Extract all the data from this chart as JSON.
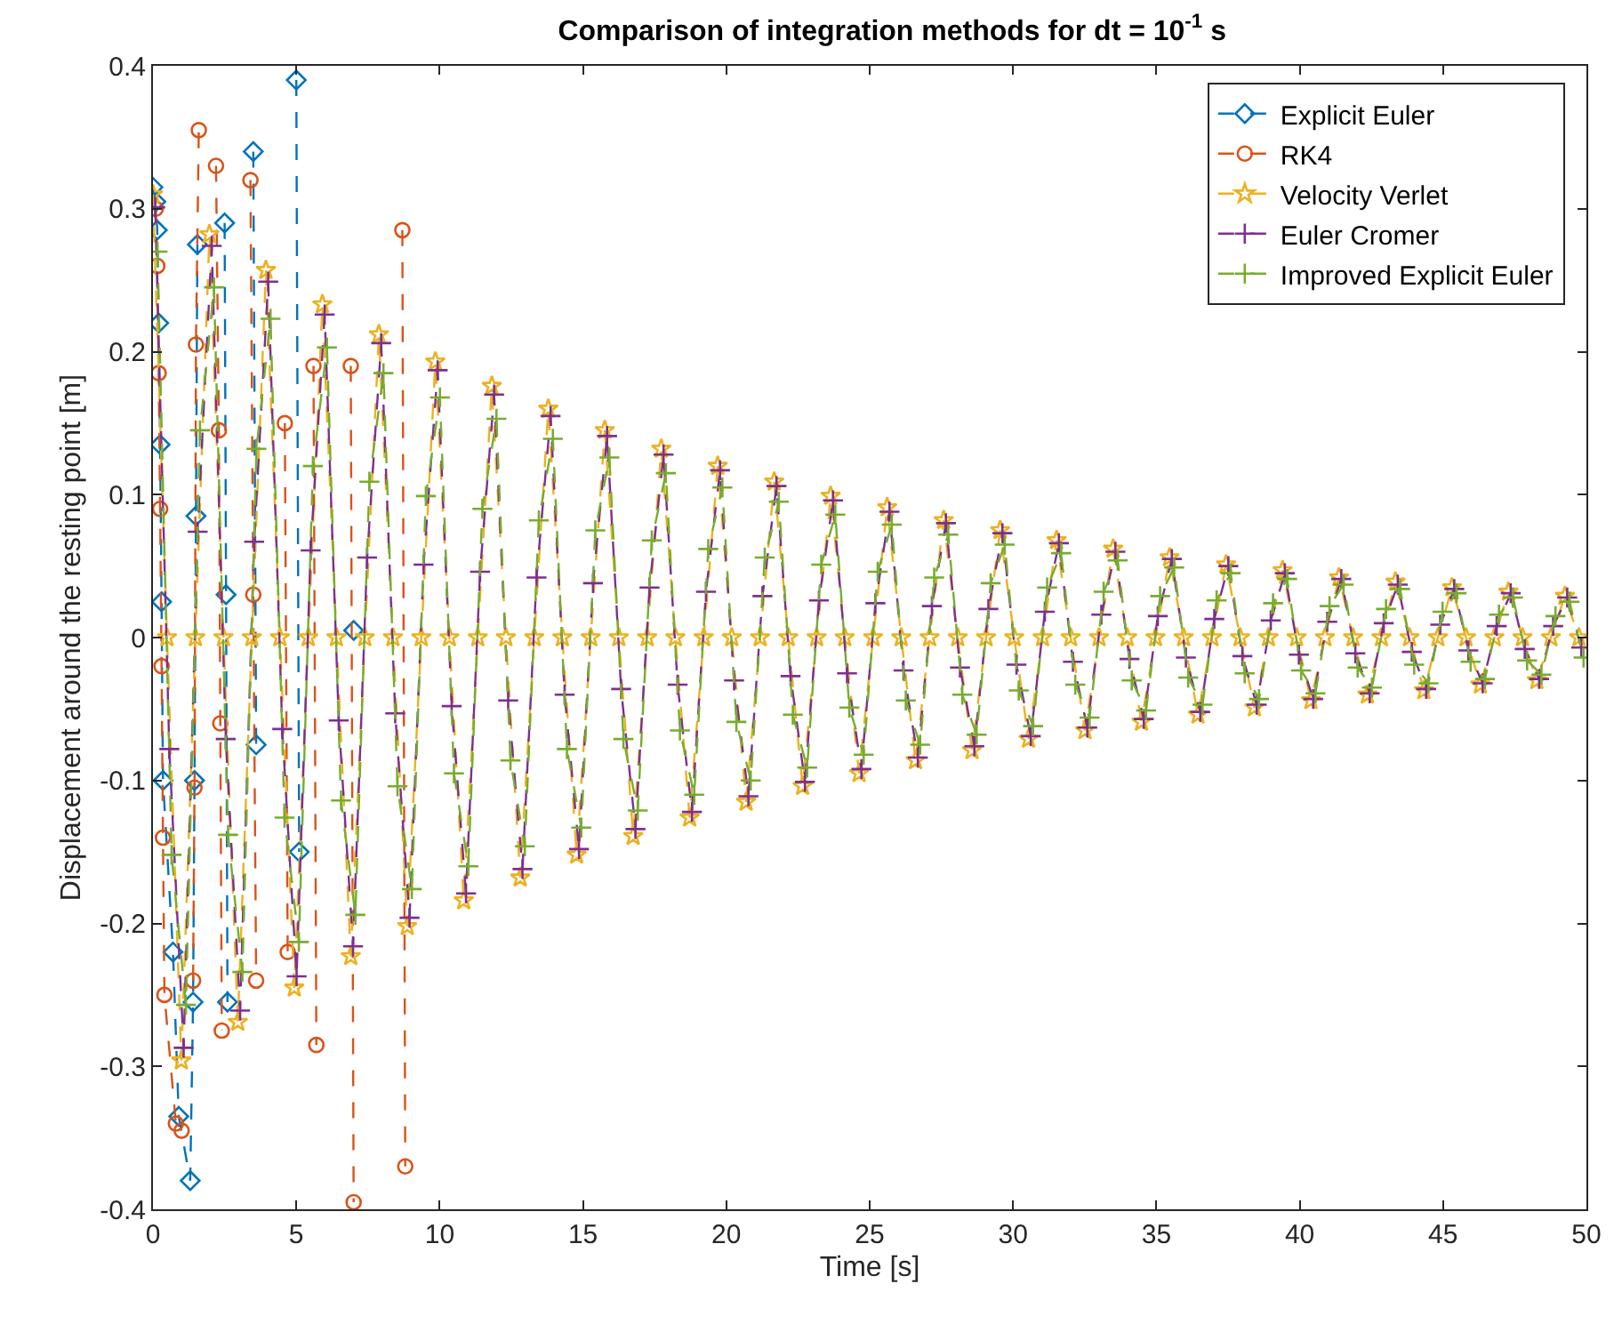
{
  "chart_data": {
    "type": "line",
    "title": "Comparison of integration methods for dt = 10$^{-1}$ s",
    "xlabel": "Time [s]",
    "ylabel": "Displacement around the resting point [m]",
    "x": [
      0,
      0.49,
      0.99,
      1.48,
      1.97,
      2.46,
      2.96,
      3.45,
      3.94,
      4.43,
      4.93,
      5.42,
      5.91,
      6.4,
      6.9,
      7.39,
      7.88,
      8.37,
      8.87,
      9.36,
      9.85,
      10.34,
      10.84,
      11.33,
      11.82,
      12.31,
      12.81,
      13.3,
      13.79,
      14.28,
      14.78,
      15.27,
      15.76,
      16.25,
      16.75,
      17.24,
      17.73,
      18.22,
      18.72,
      19.21,
      19.7,
      20.19,
      20.69,
      21.18,
      21.67,
      22.16,
      22.66,
      23.15,
      23.64,
      24.13,
      24.63,
      25.12,
      25.61,
      26.1,
      26.6,
      27.09,
      27.58,
      28.07,
      28.57,
      29.06,
      29.55,
      30.04,
      30.54,
      31.03,
      31.52,
      32.01,
      32.51,
      33.0,
      33.49,
      33.98,
      34.48,
      34.97,
      35.46,
      35.95,
      36.45,
      36.94,
      37.43,
      37.92,
      38.42,
      38.91,
      39.4,
      39.89,
      40.39,
      40.88,
      41.37,
      41.86,
      42.36,
      42.85,
      43.34,
      43.83,
      44.33,
      44.82,
      45.31,
      45.8,
      46.3,
      46.79,
      47.28,
      47.77,
      48.27,
      48.76,
      49.25,
      49.74
    ],
    "series": [
      {
        "name": "Explicit Euler",
        "color": "#0072bd",
        "marker": "diamond",
        "x": [
          0,
          0.1,
          0.15,
          0.2,
          0.25,
          0.3,
          0.35,
          0.7,
          0.9,
          1.3,
          1.4,
          1.45,
          1.5,
          1.55,
          1.6,
          2.5,
          2.55,
          2.6,
          2.65,
          3.5,
          3.6,
          3.65,
          5.0,
          5.1,
          5.15,
          7.0
        ],
        "values": [
          0.315,
          0.305,
          0.285,
          0.22,
          0.135,
          0.025,
          -0.1,
          -0.22,
          -0.335,
          -0.38,
          -0.255,
          -0.1,
          0.085,
          0.275,
          null,
          0.29,
          0.03,
          -0.255,
          null,
          0.34,
          -0.075,
          null,
          0.39,
          -0.15,
          null,
          0.005
        ]
      },
      {
        "name": "RK4",
        "color": "#d95319",
        "marker": "circle",
        "x": [
          0.1,
          0.15,
          0.2,
          0.25,
          0.3,
          0.35,
          0.4,
          0.8,
          1.0,
          1.2,
          1.4,
          1.45,
          1.5,
          1.6,
          1.9,
          2.2,
          2.3,
          2.35,
          2.4,
          2.9,
          3.4,
          3.5,
          3.6,
          4.0,
          4.6,
          4.7,
          5.0,
          5.6,
          5.7,
          6.3,
          6.9,
          7.0,
          7.8,
          8.7,
          8.8
        ],
        "values": [
          0.3,
          0.26,
          0.185,
          0.09,
          -0.02,
          -0.14,
          -0.25,
          -0.34,
          -0.345,
          null,
          -0.24,
          -0.105,
          0.205,
          0.355,
          null,
          0.33,
          0.145,
          -0.06,
          -0.275,
          null,
          0.32,
          0.03,
          -0.24,
          null,
          0.15,
          -0.22,
          null,
          0.19,
          -0.285,
          null,
          0.19,
          -0.395,
          null,
          0.285,
          -0.37
        ]
      },
      {
        "name": "Velocity Verlet",
        "color": "#edb120",
        "marker": "star",
        "values": [
          0.31,
          0,
          -0.296,
          0,
          0.282,
          0,
          -0.269,
          0,
          0.257,
          0,
          -0.245,
          0,
          0.233,
          0,
          -0.223,
          0,
          0.212,
          0,
          -0.202,
          0,
          0.193,
          0,
          -0.184,
          0,
          0.176,
          0,
          -0.168,
          0,
          0.16,
          0,
          -0.152,
          0,
          0.145,
          0,
          -0.139,
          0,
          0.132,
          0,
          -0.126,
          0,
          0.12,
          0,
          -0.115,
          0,
          0.109,
          0,
          -0.104,
          0,
          0.099,
          0,
          -0.095,
          0,
          0.091,
          0,
          -0.086,
          0,
          0.082,
          0,
          -0.079,
          0,
          0.075,
          0,
          -0.071,
          0,
          0.068,
          0,
          -0.065,
          0,
          0.062,
          0,
          -0.059,
          0,
          0.056,
          0,
          -0.054,
          0,
          0.051,
          0,
          -0.049,
          0,
          0.047,
          0,
          -0.044,
          0,
          0.042,
          0,
          -0.04,
          0,
          0.039,
          0,
          -0.037,
          0,
          0.035,
          0,
          -0.033,
          0,
          0.032,
          0,
          -0.03,
          0,
          0.029,
          0
        ]
      },
      {
        "name": "Euler Cromer",
        "color": "#7e2f8e",
        "marker": "cross",
        "x": [
          0.08,
          0.57,
          1.07,
          1.56,
          2.05,
          2.54,
          3.04,
          3.53,
          4.02,
          4.51,
          5.01,
          5.5,
          5.99,
          6.48,
          6.98,
          7.47,
          7.96,
          8.45,
          8.95,
          9.44,
          9.93,
          10.42,
          10.92,
          11.41,
          11.9,
          12.39,
          12.89,
          13.38,
          13.87,
          14.36,
          14.86,
          15.35,
          15.84,
          16.33,
          16.83,
          17.32,
          17.81,
          18.3,
          18.8,
          19.29,
          19.78,
          20.27,
          20.77,
          21.26,
          21.75,
          22.24,
          22.74,
          23.23,
          23.72,
          24.21,
          24.71,
          25.2,
          25.69,
          26.18,
          26.68,
          27.17,
          27.66,
          28.15,
          28.65,
          29.14,
          29.63,
          30.12,
          30.62,
          31.11,
          31.6,
          32.09,
          32.59,
          33.08,
          33.57,
          34.06,
          34.56,
          35.05,
          35.54,
          36.03,
          36.53,
          37.02,
          37.51,
          38.0,
          38.5,
          38.99,
          39.48,
          39.97,
          40.47,
          40.96,
          41.45,
          41.94,
          42.44,
          42.93,
          43.42,
          43.91,
          44.41,
          44.9,
          45.39,
          45.88,
          46.38,
          46.87,
          47.36,
          47.85,
          48.35,
          48.84,
          49.33,
          49.82
        ],
        "values": [
          0.301,
          -0.078,
          -0.287,
          0.074,
          0.274,
          -0.071,
          -0.261,
          0.067,
          0.249,
          -0.064,
          -0.237,
          0.061,
          0.226,
          -0.058,
          -0.216,
          0.056,
          0.206,
          -0.053,
          -0.196,
          0.051,
          0.187,
          -0.048,
          -0.179,
          0.046,
          0.17,
          -0.044,
          -0.162,
          0.042,
          0.155,
          -0.04,
          -0.148,
          0.038,
          0.141,
          -0.036,
          -0.134,
          0.035,
          0.128,
          -0.033,
          -0.122,
          0.032,
          0.117,
          -0.03,
          -0.111,
          0.029,
          0.106,
          -0.027,
          -0.101,
          0.026,
          0.096,
          -0.025,
          -0.092,
          0.024,
          0.088,
          -0.023,
          -0.084,
          0.022,
          0.08,
          -0.021,
          -0.076,
          0.02,
          0.073,
          -0.019,
          -0.069,
          0.018,
          0.066,
          -0.017,
          -0.063,
          0.016,
          0.06,
          -0.015,
          -0.057,
          0.015,
          0.055,
          -0.014,
          -0.052,
          0.013,
          0.05,
          -0.013,
          -0.047,
          0.012,
          0.045,
          -0.012,
          -0.043,
          0.011,
          0.041,
          -0.011,
          -0.039,
          0.01,
          0.037,
          -0.01,
          -0.036,
          0.009,
          0.034,
          -0.009,
          -0.032,
          0.008,
          0.031,
          -0.008,
          -0.029,
          0.008,
          0.028,
          -0.007
        ]
      },
      {
        "name": "Improved Explicit Euler",
        "color": "#77ac30",
        "marker": "cross",
        "x": [
          0.16,
          0.65,
          1.15,
          1.64,
          2.13,
          2.62,
          3.12,
          3.61,
          4.1,
          4.59,
          5.09,
          5.58,
          6.07,
          6.56,
          7.06,
          7.55,
          8.04,
          8.53,
          9.03,
          9.52,
          10.01,
          10.5,
          11.0,
          11.49,
          11.98,
          12.47,
          12.97,
          13.46,
          13.95,
          14.44,
          14.94,
          15.43,
          15.92,
          16.41,
          16.91,
          17.4,
          17.89,
          18.38,
          18.88,
          19.37,
          19.86,
          20.35,
          20.85,
          21.34,
          21.83,
          22.32,
          22.82,
          23.31,
          23.8,
          24.29,
          24.79,
          25.28,
          25.77,
          26.26,
          26.76,
          27.25,
          27.74,
          28.23,
          28.73,
          29.22,
          29.71,
          30.2,
          30.7,
          31.19,
          31.68,
          32.17,
          32.67,
          33.16,
          33.65,
          34.14,
          34.64,
          35.13,
          35.62,
          36.11,
          36.61,
          37.1,
          37.59,
          38.08,
          38.58,
          39.07,
          39.56,
          40.05,
          40.55,
          41.04,
          41.53,
          42.02,
          42.52,
          43.01,
          43.5,
          43.99,
          44.49,
          44.98,
          45.47,
          45.96,
          46.46,
          46.95,
          47.44,
          47.93,
          48.43,
          48.92,
          49.41,
          49.9
        ],
        "values": [
          0.27,
          -0.152,
          -0.257,
          0.145,
          0.245,
          -0.138,
          -0.234,
          0.132,
          0.223,
          -0.126,
          -0.213,
          0.12,
          0.203,
          -0.114,
          -0.194,
          0.109,
          0.185,
          -0.104,
          -0.176,
          0.099,
          0.168,
          -0.095,
          -0.16,
          0.09,
          0.153,
          -0.086,
          -0.146,
          0.082,
          0.139,
          -0.078,
          -0.133,
          0.075,
          0.126,
          -0.071,
          -0.121,
          0.068,
          0.115,
          -0.065,
          -0.11,
          0.062,
          0.105,
          -0.059,
          -0.1,
          0.056,
          0.095,
          -0.054,
          -0.091,
          0.051,
          0.086,
          -0.049,
          -0.082,
          0.046,
          0.079,
          -0.044,
          -0.075,
          0.042,
          0.072,
          -0.04,
          -0.068,
          0.038,
          0.065,
          -0.037,
          -0.062,
          0.035,
          0.059,
          -0.033,
          -0.056,
          0.032,
          0.054,
          -0.03,
          -0.051,
          0.029,
          0.049,
          -0.028,
          -0.047,
          0.026,
          0.045,
          -0.025,
          -0.043,
          0.024,
          0.041,
          -0.023,
          -0.039,
          0.022,
          0.037,
          -0.021,
          -0.035,
          0.02,
          0.034,
          -0.019,
          -0.032,
          0.018,
          0.031,
          -0.017,
          -0.029,
          0.016,
          0.028,
          -0.016,
          -0.026,
          0.015,
          0.025,
          -0.014
        ]
      }
    ],
    "xlim": [
      0,
      50
    ],
    "xticks": [
      0,
      5,
      10,
      15,
      20,
      25,
      30,
      35,
      40,
      45,
      50
    ],
    "ylim": [
      -0.4,
      0.4
    ],
    "yticks": [
      -0.4,
      -0.3,
      -0.2,
      -0.1,
      0,
      0.1,
      0.2,
      0.3,
      0.4
    ],
    "grid": false,
    "legend": "top right",
    "line_style": "dashed"
  }
}
